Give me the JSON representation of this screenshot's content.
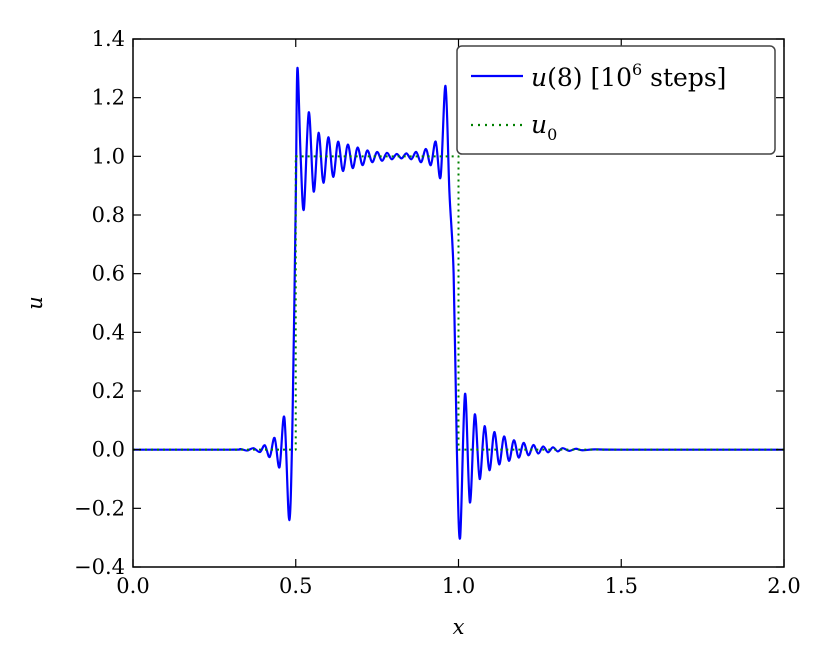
{
  "chart_data": {
    "type": "line",
    "xlabel": "x",
    "ylabel": "u",
    "xlim": [
      0.0,
      2.0
    ],
    "ylim": [
      -0.4,
      1.4
    ],
    "xticks": [
      0.0,
      0.5,
      1.0,
      1.5,
      2.0
    ],
    "xtick_labels": [
      "0.0",
      "0.5",
      "1.0",
      "1.5",
      "2.0"
    ],
    "yticks": [
      -0.4,
      -0.2,
      0.0,
      0.2,
      0.4,
      0.6,
      0.8,
      1.0,
      1.2,
      1.4
    ],
    "ytick_labels": [
      "−0.4",
      "−0.2",
      "0.0",
      "0.2",
      "0.4",
      "0.6",
      "0.8",
      "1.0",
      "1.2",
      "1.4"
    ],
    "grid": false,
    "legend_position": "top-right",
    "legend": {
      "u_main": "u",
      "u_paren": "(8) [10",
      "u_sup": "6",
      "u_tail": "  steps]",
      "u0_main": "u",
      "u0_sub": "0"
    },
    "series": [
      {
        "name": "u(8) [10^6 steps]",
        "color": "#0000ff",
        "style": "solid",
        "points": [
          [
            0.0,
            0.0
          ],
          [
            0.3,
            0.0
          ],
          [
            0.33,
            0.002
          ],
          [
            0.35,
            -0.003
          ],
          [
            0.37,
            0.005
          ],
          [
            0.39,
            -0.008
          ],
          [
            0.405,
            0.015
          ],
          [
            0.42,
            -0.025
          ],
          [
            0.435,
            0.04
          ],
          [
            0.45,
            -0.06
          ],
          [
            0.465,
            0.11
          ],
          [
            0.48,
            -0.24
          ],
          [
            0.49,
            0.1
          ],
          [
            0.5,
            0.85
          ],
          [
            0.505,
            1.3
          ],
          [
            0.515,
            1.0
          ],
          [
            0.525,
            0.82
          ],
          [
            0.54,
            1.15
          ],
          [
            0.555,
            0.88
          ],
          [
            0.57,
            1.08
          ],
          [
            0.585,
            0.91
          ],
          [
            0.6,
            1.065
          ],
          [
            0.615,
            0.93
          ],
          [
            0.63,
            1.05
          ],
          [
            0.645,
            0.95
          ],
          [
            0.66,
            1.04
          ],
          [
            0.675,
            0.96
          ],
          [
            0.69,
            1.03
          ],
          [
            0.705,
            0.97
          ],
          [
            0.72,
            1.02
          ],
          [
            0.735,
            0.98
          ],
          [
            0.75,
            1.015
          ],
          [
            0.765,
            0.985
          ],
          [
            0.78,
            1.012
          ],
          [
            0.795,
            0.99
          ],
          [
            0.81,
            1.008
          ],
          [
            0.825,
            0.993
          ],
          [
            0.84,
            1.01
          ],
          [
            0.855,
            0.99
          ],
          [
            0.87,
            1.015
          ],
          [
            0.885,
            0.98
          ],
          [
            0.9,
            1.025
          ],
          [
            0.915,
            0.97
          ],
          [
            0.93,
            1.05
          ],
          [
            0.945,
            0.93
          ],
          [
            0.96,
            1.24
          ],
          [
            0.972,
            0.88
          ],
          [
            0.985,
            0.6
          ],
          [
            0.995,
            0.0
          ],
          [
            1.005,
            -0.3
          ],
          [
            1.02,
            0.19
          ],
          [
            1.035,
            -0.18
          ],
          [
            1.05,
            0.12
          ],
          [
            1.065,
            -0.1
          ],
          [
            1.08,
            0.08
          ],
          [
            1.095,
            -0.07
          ],
          [
            1.11,
            0.06
          ],
          [
            1.125,
            -0.05
          ],
          [
            1.14,
            0.045
          ],
          [
            1.155,
            -0.038
          ],
          [
            1.17,
            0.032
          ],
          [
            1.185,
            -0.027
          ],
          [
            1.2,
            0.023
          ],
          [
            1.215,
            -0.019
          ],
          [
            1.23,
            0.016
          ],
          [
            1.245,
            -0.013
          ],
          [
            1.26,
            0.011
          ],
          [
            1.275,
            -0.009
          ],
          [
            1.29,
            0.008
          ],
          [
            1.305,
            -0.006
          ],
          [
            1.32,
            0.005
          ],
          [
            1.34,
            -0.004
          ],
          [
            1.36,
            0.003
          ],
          [
            1.38,
            -0.002
          ],
          [
            1.42,
            0.001
          ],
          [
            1.5,
            0.0
          ],
          [
            2.0,
            0.0
          ]
        ]
      },
      {
        "name": "u0",
        "color": "#008000",
        "style": "dotted",
        "points": [
          [
            0.0,
            0.0
          ],
          [
            0.5,
            0.0
          ],
          [
            0.5,
            1.0
          ],
          [
            1.0,
            1.0
          ],
          [
            1.0,
            0.0
          ],
          [
            2.0,
            0.0
          ]
        ]
      }
    ]
  }
}
